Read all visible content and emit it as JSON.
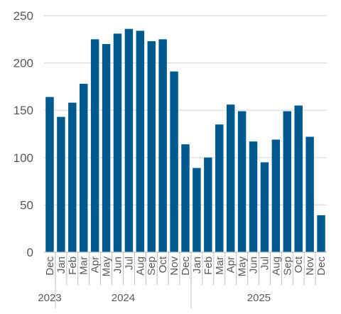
{
  "chart_data": {
    "type": "bar",
    "title": "",
    "xlabel": "",
    "ylabel": "",
    "ylim": [
      0,
      250
    ],
    "yticks": [
      "0",
      "50",
      "100",
      "150",
      "200",
      "250"
    ],
    "grid": true,
    "legend": "none",
    "colors": {
      "bar": "#005A8E",
      "grid": "#D9D9D9",
      "axis": "#BFBFBF",
      "text": "#595959"
    },
    "categories": [
      "Dec",
      "Jan",
      "Feb",
      "Mar",
      "Apr",
      "May",
      "Jun",
      "Jul",
      "Aug",
      "Sep",
      "Oct",
      "Nov",
      "Dec",
      "Jan",
      "Feb",
      "Mar",
      "Apr",
      "May",
      "Jun",
      "Jul",
      "Aug",
      "Sep",
      "Oct",
      "Nov",
      "Dec"
    ],
    "values": [
      164,
      143,
      158,
      178,
      225,
      220,
      231,
      236,
      234,
      223,
      225,
      191,
      114,
      89,
      100,
      135,
      156,
      149,
      117,
      95,
      119,
      149,
      155,
      122,
      39
    ],
    "year_groups": [
      {
        "label": "2023",
        "count": 1
      },
      {
        "label": "2024",
        "count": 12
      },
      {
        "label": "2025",
        "count": 12
      }
    ]
  }
}
